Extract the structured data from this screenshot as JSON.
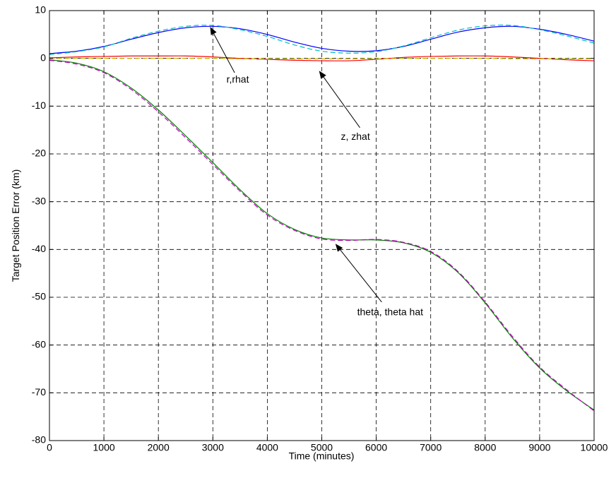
{
  "chart_data": {
    "type": "line",
    "title": "",
    "xlabel": "Time (minutes)",
    "ylabel": "Target Position Error (km)",
    "xlim": [
      0,
      10000
    ],
    "ylim": [
      -80,
      10
    ],
    "grid": true,
    "x_ticks": [
      0,
      1000,
      2000,
      3000,
      4000,
      5000,
      6000,
      7000,
      8000,
      9000,
      10000
    ],
    "y_ticks": [
      10,
      0,
      -10,
      -20,
      -30,
      -40,
      -50,
      -60,
      -70,
      -80
    ],
    "x_tick_labels": [
      "0",
      "1000",
      "2000",
      "3000",
      "4000",
      "5000",
      "6000",
      "7000",
      "8000",
      "9000",
      "10000"
    ],
    "y_tick_labels": [
      "10",
      "0",
      "-10",
      "-20",
      "-30",
      "-40",
      "-50",
      "-60",
      "-70",
      "-80"
    ],
    "x": [
      0,
      500,
      1000,
      1500,
      2000,
      2500,
      3000,
      3500,
      4000,
      4500,
      5000,
      5500,
      6000,
      6500,
      7000,
      7500,
      8000,
      8500,
      9000,
      9500,
      10000
    ],
    "series": [
      {
        "color": "#0000ff",
        "dash": "solid",
        "values": [
          1.0,
          1.5,
          2.5,
          4.0,
          5.4,
          6.4,
          6.7,
          6.2,
          5.0,
          3.4,
          2.1,
          1.5,
          1.6,
          2.5,
          4.0,
          5.5,
          6.4,
          6.7,
          6.1,
          5.0,
          3.6
        ]
      },
      {
        "color": "#00bfbf",
        "dash": "dashed",
        "values": [
          0.8,
          1.4,
          2.4,
          4.2,
          5.7,
          6.7,
          6.9,
          6.0,
          4.6,
          2.8,
          1.5,
          1.1,
          1.4,
          2.6,
          4.3,
          5.9,
          6.8,
          6.9,
          6.0,
          4.7,
          3.2
        ]
      },
      {
        "color": "#ff0000",
        "dash": "solid",
        "values": [
          0.1,
          0.3,
          0.4,
          0.5,
          0.5,
          0.5,
          0.3,
          0.0,
          -0.2,
          -0.4,
          -0.5,
          -0.5,
          -0.2,
          0.2,
          0.4,
          0.5,
          0.5,
          0.3,
          0.0,
          -0.3,
          -0.5
        ]
      },
      {
        "color": "#bfbf00",
        "dash": "dashed",
        "values": [
          0.0,
          0.0,
          0.0,
          0.0,
          0.0,
          0.0,
          0.0,
          -0.1,
          -0.1,
          -0.1,
          -0.1,
          -0.1,
          -0.1,
          0.0,
          0.0,
          0.0,
          0.0,
          -0.1,
          -0.1,
          -0.1,
          -0.1
        ]
      },
      {
        "color": "#008000",
        "dash": "solid",
        "values": [
          -0.3,
          -1.0,
          -2.8,
          -6.2,
          -10.8,
          -16.2,
          -21.8,
          -27.5,
          -32.5,
          -35.8,
          -37.6,
          -38.0,
          -38.0,
          -38.6,
          -40.6,
          -44.8,
          -51.2,
          -58.5,
          -64.8,
          -69.6,
          -73.6
        ]
      },
      {
        "color": "#bf00bf",
        "dash": "dashed",
        "values": [
          -0.4,
          -1.2,
          -3.0,
          -6.5,
          -11.2,
          -16.6,
          -22.2,
          -27.8,
          -32.8,
          -36.0,
          -37.8,
          -38.1,
          -37.9,
          -38.5,
          -40.4,
          -44.6,
          -51.0,
          -58.2,
          -64.6,
          -69.4,
          -73.8
        ]
      }
    ],
    "annotations": [
      {
        "text": "r,rhat",
        "label_at": [
          3250,
          -4.5
        ],
        "arrow_from": [
          3400,
          -3.0
        ],
        "arrow_to": [
          2950,
          6.6
        ]
      },
      {
        "text": "z, zhat",
        "label_at": [
          5350,
          -16.5
        ],
        "arrow_from": [
          5700,
          -14.5
        ],
        "arrow_to": [
          4950,
          -2.6
        ]
      },
      {
        "text": "theta, theta hat",
        "label_at": [
          5650,
          -53.2
        ],
        "arrow_from": [
          6100,
          -51.0
        ],
        "arrow_to": [
          5250,
          -38.8
        ]
      }
    ]
  }
}
